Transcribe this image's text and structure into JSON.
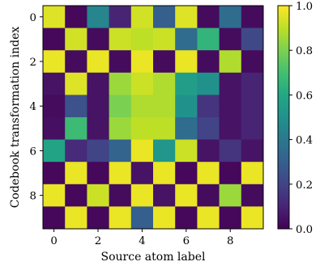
{
  "chart_data": {
    "type": "heatmap",
    "xlabel": "Source atom label",
    "ylabel": "Codebook transformation index",
    "x_ticks": [
      "0",
      "2",
      "4",
      "6",
      "8"
    ],
    "y_ticks": [
      "0",
      "2",
      "4",
      "6",
      "8"
    ],
    "colorbar_ticks": [
      "0.0",
      "0.2",
      "0.4",
      "0.6",
      "0.8",
      "1.0"
    ],
    "colorbar_range": [
      0.0,
      1.0
    ],
    "colormap": "viridis",
    "rows": 10,
    "cols": 10,
    "values": [
      [
        0.95,
        0.02,
        0.45,
        0.1,
        0.93,
        0.3,
        0.95,
        0.03,
        0.35,
        0.03
      ],
      [
        0.02,
        0.93,
        0.03,
        0.92,
        0.9,
        0.92,
        0.35,
        0.65,
        0.03,
        0.22
      ],
      [
        0.97,
        0.03,
        0.97,
        0.03,
        0.97,
        0.03,
        0.97,
        0.03,
        0.88,
        0.03
      ],
      [
        0.05,
        0.95,
        0.05,
        0.85,
        0.92,
        0.88,
        0.55,
        0.5,
        0.05,
        0.1
      ],
      [
        0.03,
        0.25,
        0.05,
        0.8,
        0.88,
        0.88,
        0.5,
        0.15,
        0.05,
        0.1
      ],
      [
        0.04,
        0.68,
        0.05,
        0.85,
        0.9,
        0.9,
        0.35,
        0.2,
        0.05,
        0.1
      ],
      [
        0.58,
        0.12,
        0.2,
        0.32,
        0.97,
        0.52,
        0.92,
        0.05,
        0.15,
        0.05
      ],
      [
        0.02,
        0.97,
        0.02,
        0.97,
        0.05,
        0.97,
        0.02,
        0.97,
        0.02,
        0.97
      ],
      [
        0.97,
        0.02,
        0.92,
        0.03,
        0.97,
        0.05,
        0.97,
        0.03,
        0.85,
        0.03
      ],
      [
        0.02,
        0.97,
        0.02,
        0.97,
        0.3,
        0.97,
        0.02,
        0.97,
        0.02,
        0.97
      ]
    ]
  }
}
